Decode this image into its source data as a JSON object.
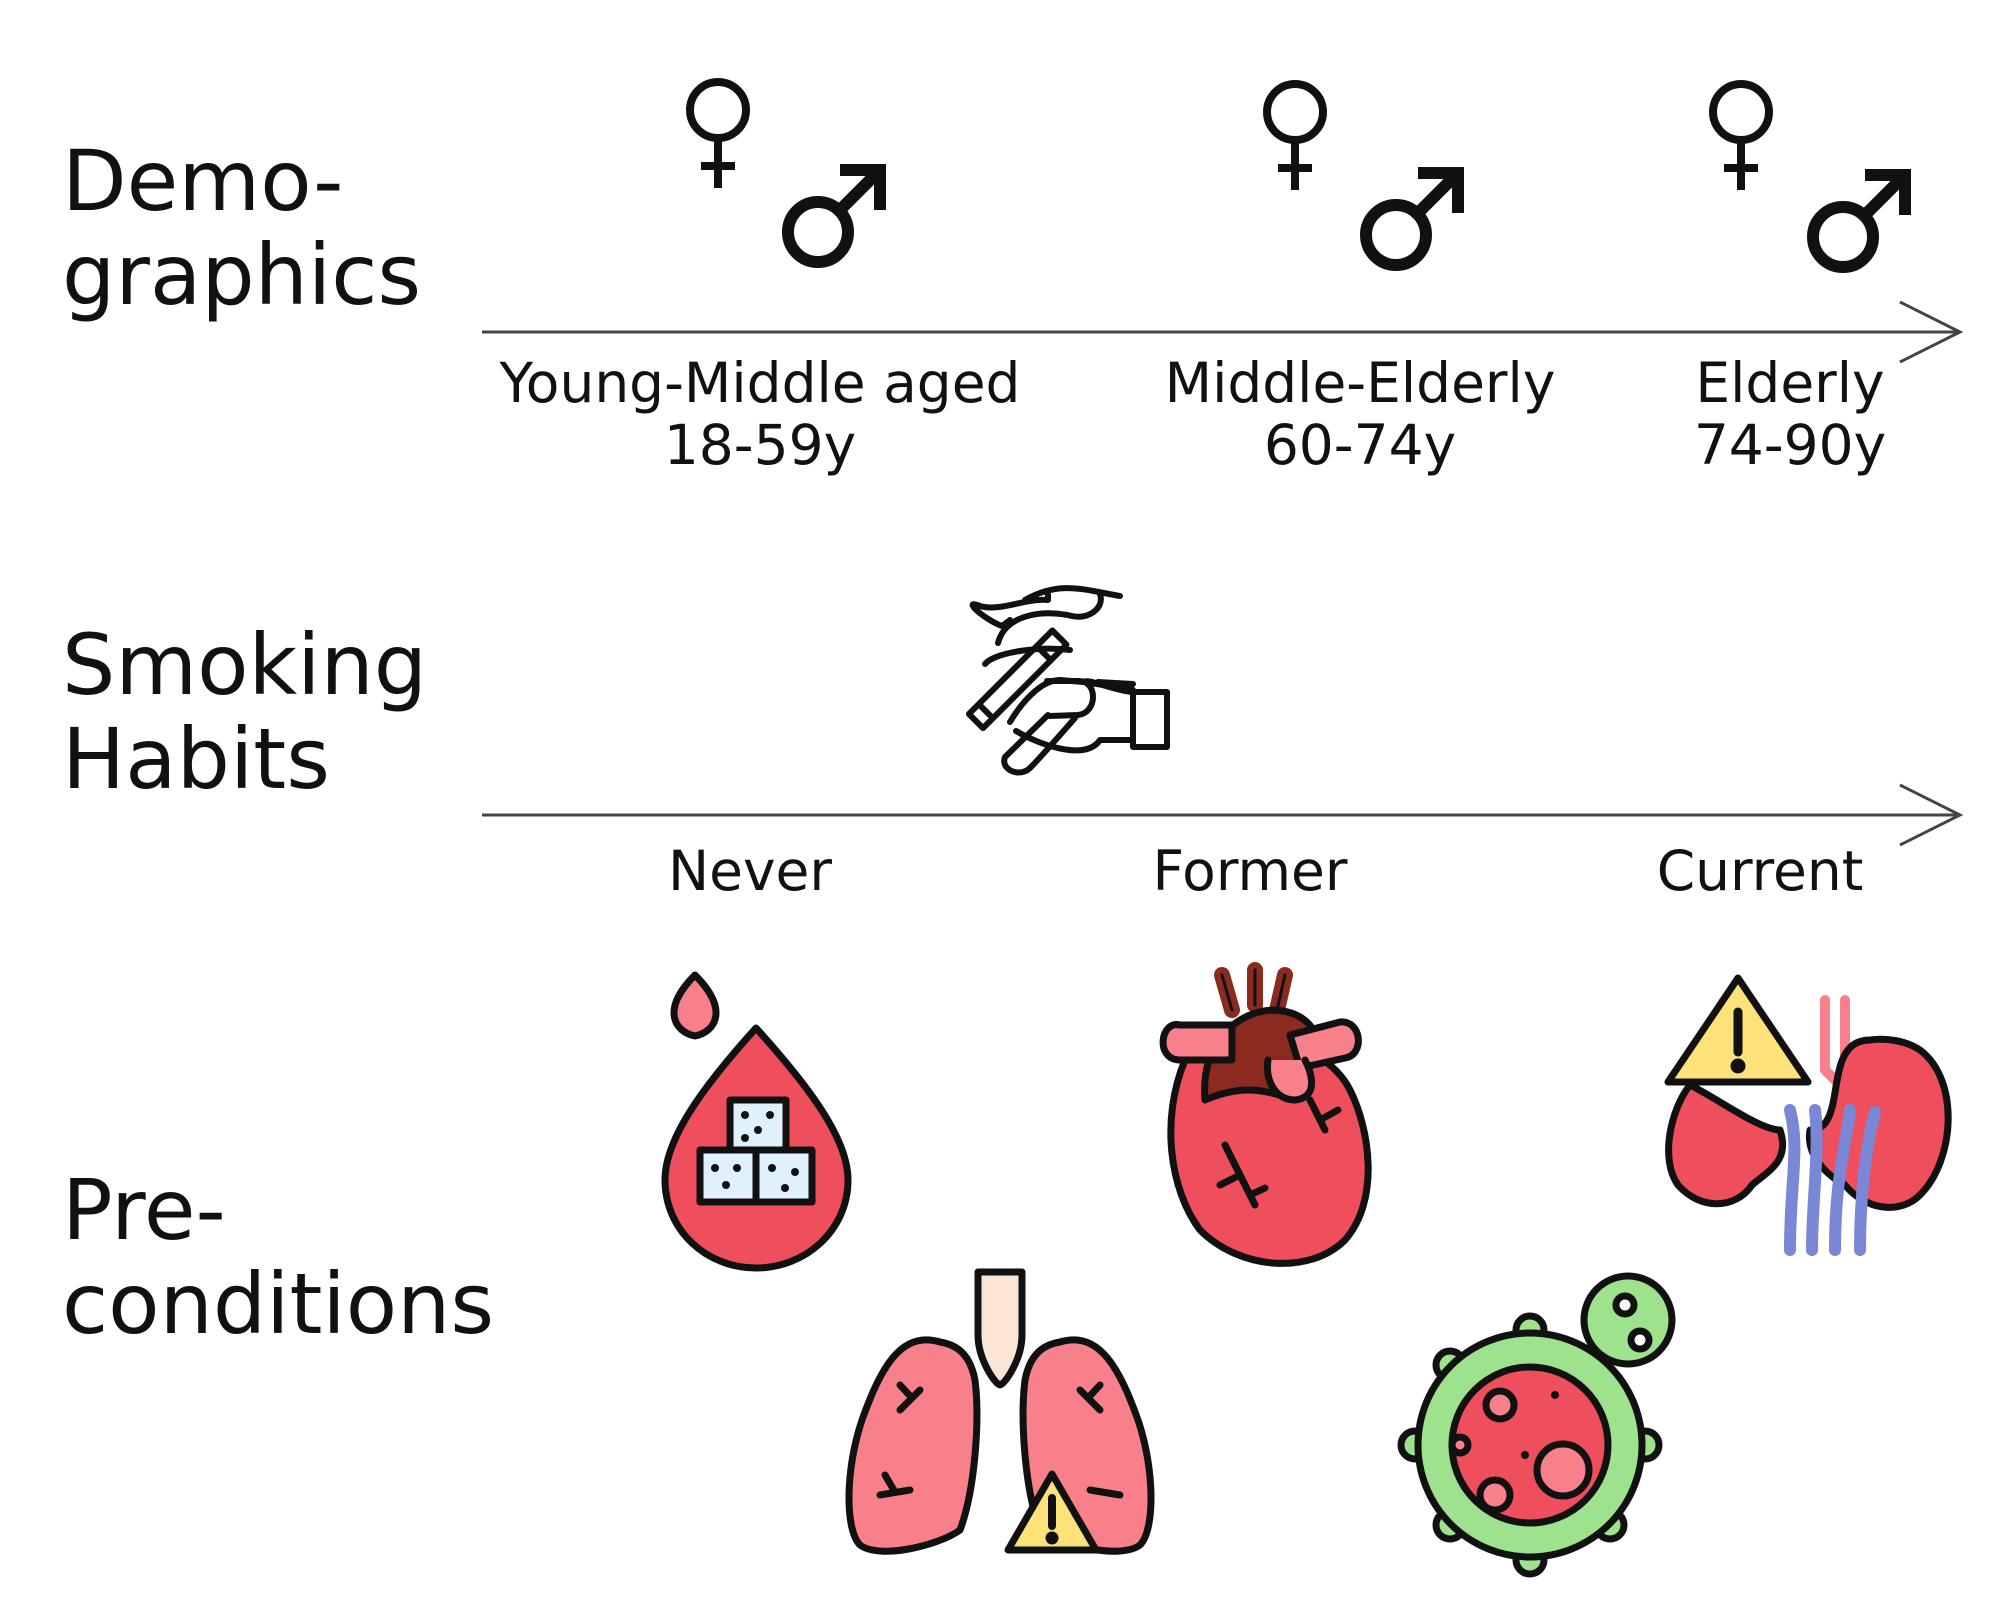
{
  "rows": {
    "demographics": {
      "title_line1": "Demo-",
      "title_line2": "graphics",
      "groups": [
        {
          "name": "Young-Middle aged",
          "range": "18-59y"
        },
        {
          "name": "Middle-Elderly",
          "range": "60-74y"
        },
        {
          "name": "Elderly",
          "range": "74-90y"
        }
      ],
      "icons": [
        "female-symbol-icon",
        "male-symbol-icon"
      ]
    },
    "smoking": {
      "title_line1": "Smoking",
      "title_line2": "Habits",
      "categories": [
        "Never",
        "Former",
        "Current"
      ],
      "icon": "hand-with-cigarette-icon"
    },
    "preconditions": {
      "title_line1": "Pre-",
      "title_line2": "conditions",
      "icons": [
        "blood-drop-sugar-cubes-icon",
        "lungs-warning-icon",
        "heart-icon",
        "virus-cell-icon",
        "kidneys-warning-icon"
      ]
    }
  },
  "colors": {
    "axis": "#444444",
    "outline": "#111111",
    "organ_red": "#ef4f5d",
    "organ_pink": "#f7808b",
    "warning_yellow": "#fde27a",
    "virus_green": "#9ee28e",
    "vessel_blue": "#7a86d6",
    "artery_dark": "#8b2a1f",
    "trachea": "#fbe6d6"
  }
}
